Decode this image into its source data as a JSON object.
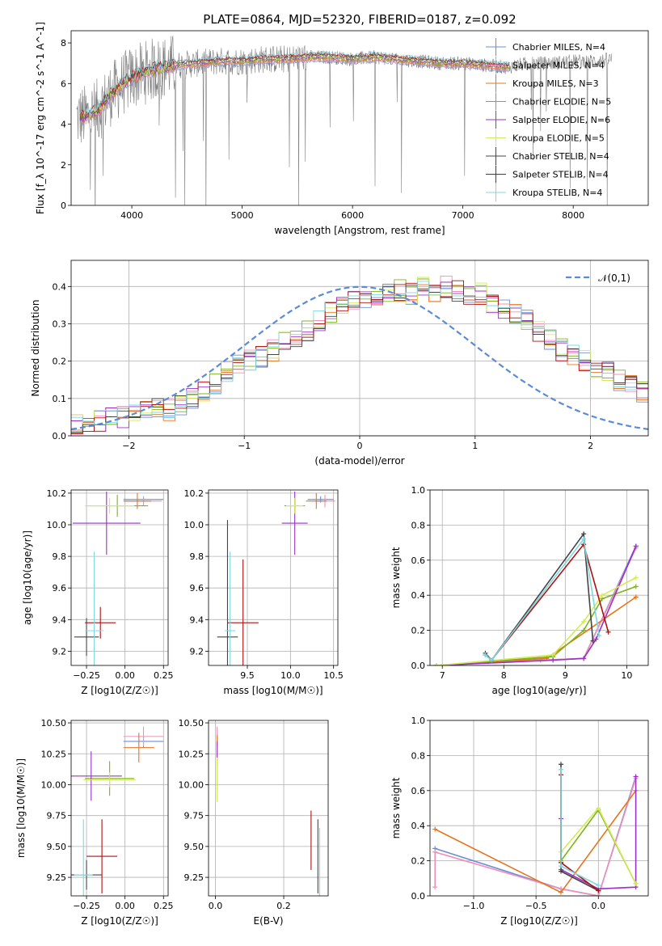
{
  "figure_title": "PLATE=0864, MJD=52320, FIBERID=0187, z=0.092",
  "colors": {
    "Chabrier MILES": "#6a8fd8",
    "Salpeter MILES": "#f08fb8",
    "Kroupa MILES": "#e8741e",
    "Chabrier ELODIE": "#7cb518",
    "Salpeter ELODIE": "#9b30c8",
    "Kroupa ELODIE": "#d4ea5a",
    "Chabrier STELIB": "#444444",
    "Salpeter STELIB": "#b01010",
    "Kroupa STELIB": "#7fd8e0",
    "gauss": "#5b8bd6"
  },
  "chart_data": [
    {
      "type": "line",
      "title": "PLATE=0864, MJD=52320, FIBERID=0187, z=0.092",
      "xlabel": "wavelength [Angstrom, rest frame]",
      "ylabel": "Flux [f_λ 10^-17 erg cm^-2 s^-1 A^-1]",
      "xlim": [
        3450,
        8680
      ],
      "ylim": [
        0,
        8.6
      ],
      "xticks": [
        4000,
        5000,
        6000,
        7000,
        8000
      ],
      "yticks": [
        0,
        2,
        4,
        6,
        8
      ],
      "legend_position": "right",
      "legend": [
        {
          "label": "Chabrier MILES, N_SSP=4",
          "series": "Chabrier MILES"
        },
        {
          "label": "Salpeter MILES, N_SSP=4",
          "series": "Salpeter MILES"
        },
        {
          "label": "Kroupa MILES, N_SSP=3",
          "series": "Kroupa MILES"
        },
        {
          "label": "Chabrier ELODIE, N_SSP=5",
          "series": "Chabrier ELODIE"
        },
        {
          "label": "Salpeter ELODIE, N_SSP=6",
          "series": "Salpeter ELODIE"
        },
        {
          "label": "Kroupa ELODIE, N_SSP=5",
          "series": "Kroupa ELODIE"
        },
        {
          "label": "Chabrier STELIB, N_SSP=4",
          "series": "Chabrier STELIB"
        },
        {
          "label": "Salpeter STELIB, N_SSP=4",
          "series": "Salpeter STELIB"
        },
        {
          "label": "Kroupa STELIB, N_SSP=4",
          "series": "Kroupa STELIB"
        }
      ],
      "data_envelope": {
        "x": [
          3500,
          3600,
          3700,
          3800,
          3900,
          4000,
          4200,
          4400,
          4600,
          4800,
          5000,
          5200,
          5400,
          5600,
          5800,
          6000,
          6200,
          6400,
          6600,
          6800,
          7000,
          7200,
          7400,
          7600,
          7800,
          8000,
          8200,
          8350
        ],
        "y": [
          4.3,
          4.4,
          4.7,
          5.4,
          5.9,
          6.3,
          6.7,
          6.9,
          7.0,
          7.1,
          7.1,
          7.2,
          7.2,
          7.3,
          7.3,
          7.2,
          7.3,
          7.2,
          7.1,
          7.0,
          7.0,
          6.9,
          6.8,
          7.0,
          7.0,
          7.1,
          7.1,
          7.2
        ]
      },
      "data_color": "#808080"
    },
    {
      "type": "bar",
      "xlabel": "(data-model)/error",
      "ylabel": "Normed distribution",
      "xlim": [
        -2.5,
        2.5
      ],
      "ylim": [
        0,
        0.47
      ],
      "xticks": [
        -2,
        -1,
        0,
        1,
        2
      ],
      "yticks": [
        0.0,
        0.1,
        0.2,
        0.3,
        0.4
      ],
      "grid": true,
      "legend": [
        {
          "label": "𝒩(0,1)",
          "series": "gauss"
        }
      ],
      "legend_position": "top-right",
      "bin_edges_start": -2.5,
      "bin_width": 0.1,
      "base_histogram": [
        0.03,
        0.03,
        0.04,
        0.05,
        0.05,
        0.06,
        0.07,
        0.08,
        0.07,
        0.08,
        0.1,
        0.12,
        0.14,
        0.17,
        0.19,
        0.2,
        0.21,
        0.23,
        0.25,
        0.26,
        0.28,
        0.31,
        0.33,
        0.35,
        0.36,
        0.37,
        0.37,
        0.38,
        0.39,
        0.38,
        0.4,
        0.38,
        0.4,
        0.39,
        0.37,
        0.38,
        0.35,
        0.34,
        0.33,
        0.31,
        0.28,
        0.26,
        0.23,
        0.22,
        0.2,
        0.18,
        0.17,
        0.15,
        0.14,
        0.12
      ],
      "series_spread": 0.03,
      "gaussian": {
        "mean": 0,
        "sigma": 1,
        "style": "dashed"
      }
    },
    {
      "type": "scatter",
      "panel": "age-vs-Z",
      "xlabel": "Z [log10(Z/Z☉)]",
      "ylabel": "age [log10(age/yr)]",
      "xlim": [
        -0.35,
        0.28
      ],
      "ylim": [
        9.11,
        10.22
      ],
      "xticks": [
        -0.25,
        0.0,
        0.25
      ],
      "yticks": [
        9.2,
        9.4,
        9.6,
        9.8,
        10.0,
        10.2
      ],
      "grid": true,
      "points": [
        {
          "series": "Chabrier MILES",
          "x": 0.12,
          "y": 10.16,
          "xerr": 0.13,
          "yerr": 0.02
        },
        {
          "series": "Salpeter MILES",
          "x": 0.12,
          "y": 10.15,
          "xerr": 0.12,
          "yerr": 0.03
        },
        {
          "series": "Kroupa MILES",
          "x": 0.08,
          "y": 10.15,
          "xerr": 0.09,
          "yerr": 0.05
        },
        {
          "series": "Chabrier ELODIE",
          "x": -0.05,
          "y": 10.12,
          "xerr": 0.2,
          "yerr": 0.07
        },
        {
          "series": "Salpeter ELODIE",
          "x": -0.12,
          "y": 10.01,
          "xerr": 0.22,
          "yerr": 0.2
        },
        {
          "series": "Kroupa ELODIE",
          "x": -0.1,
          "y": 10.12,
          "xerr": 0.16,
          "yerr": 0.05
        },
        {
          "series": "Chabrier STELIB",
          "x": -0.25,
          "y": 9.29,
          "xerr": 0.08,
          "yerr": 0.12
        },
        {
          "series": "Salpeter STELIB",
          "x": -0.16,
          "y": 9.38,
          "xerr": 0.1,
          "yerr": 0.1
        },
        {
          "series": "Kroupa STELIB",
          "x": -0.2,
          "y": 9.33,
          "xerr": 0.06,
          "yerr": 0.5
        }
      ]
    },
    {
      "type": "scatter",
      "panel": "age-vs-mass",
      "xlabel": "mass [log10(M/M☉)]",
      "ylabel": "",
      "xlim": [
        9.05,
        10.55
      ],
      "ylim": [
        9.11,
        10.22
      ],
      "xticks": [
        9.5,
        10.0,
        10.5
      ],
      "yticks": [
        9.2,
        9.4,
        9.6,
        9.8,
        10.0,
        10.2
      ],
      "grid": true,
      "points": [
        {
          "series": "Chabrier MILES",
          "x": 10.35,
          "y": 10.16,
          "xerr": 0.15,
          "yerr": 0.02
        },
        {
          "series": "Salpeter MILES",
          "x": 10.4,
          "y": 10.15,
          "xerr": 0.12,
          "yerr": 0.04
        },
        {
          "series": "Kroupa MILES",
          "x": 10.3,
          "y": 10.15,
          "xerr": 0.12,
          "yerr": 0.05
        },
        {
          "series": "Chabrier ELODIE",
          "x": 10.05,
          "y": 10.12,
          "xerr": 0.12,
          "yerr": 0.05
        },
        {
          "series": "Salpeter ELODIE",
          "x": 10.05,
          "y": 10.01,
          "xerr": 0.15,
          "yerr": 0.2
        },
        {
          "series": "Kroupa ELODIE",
          "x": 10.05,
          "y": 10.12,
          "xerr": 0.1,
          "yerr": 0.05
        },
        {
          "series": "Chabrier STELIB",
          "x": 9.27,
          "y": 9.29,
          "xerr": 0.12,
          "yerr": 0.74
        },
        {
          "series": "Salpeter STELIB",
          "x": 9.45,
          "y": 9.38,
          "xerr": 0.18,
          "yerr": 0.4
        },
        {
          "series": "Kroupa STELIB",
          "x": 9.3,
          "y": 9.33,
          "xerr": 0.06,
          "yerr": 0.5
        }
      ]
    },
    {
      "type": "line",
      "panel": "weight-vs-age",
      "xlabel": "age [log10(age/yr)]",
      "ylabel": "mass weight",
      "xlim": [
        6.8,
        10.35
      ],
      "ylim": [
        0,
        1.0
      ],
      "xticks": [
        7,
        8,
        9,
        10
      ],
      "yticks": [
        0.0,
        0.2,
        0.4,
        0.6,
        0.8,
        1.0
      ],
      "grid": true,
      "series": [
        {
          "name": "Chabrier MILES",
          "x": [
            6.9,
            8.6,
            9.3,
            10.15
          ],
          "y": [
            0.0,
            0.03,
            0.04,
            0.68
          ]
        },
        {
          "name": "Salpeter MILES",
          "x": [
            6.9,
            8.6,
            9.3,
            10.15
          ],
          "y": [
            0.0,
            0.03,
            0.04,
            0.67
          ]
        },
        {
          "name": "Kroupa MILES",
          "x": [
            6.9,
            8.7,
            10.15
          ],
          "y": [
            0.0,
            0.04,
            0.39
          ]
        },
        {
          "name": "Chabrier ELODIE",
          "x": [
            6.9,
            8.8,
            9.3,
            9.6,
            10.15
          ],
          "y": [
            0.0,
            0.05,
            0.2,
            0.38,
            0.45
          ]
        },
        {
          "name": "Salpeter ELODIE",
          "x": [
            6.9,
            8.8,
            9.3,
            9.5,
            10.15
          ],
          "y": [
            0.0,
            0.03,
            0.04,
            0.15,
            0.68
          ]
        },
        {
          "name": "Kroupa ELODIE",
          "x": [
            6.9,
            8.8,
            9.3,
            9.6,
            10.15
          ],
          "y": [
            0.0,
            0.06,
            0.25,
            0.4,
            0.5
          ]
        },
        {
          "name": "Chabrier STELIB",
          "x": [
            7.7,
            7.8,
            9.3,
            9.45
          ],
          "y": [
            0.07,
            0.03,
            0.75,
            0.14
          ]
        },
        {
          "name": "Salpeter STELIB",
          "x": [
            7.7,
            7.8,
            9.3,
            9.7
          ],
          "y": [
            0.06,
            0.03,
            0.69,
            0.19
          ]
        },
        {
          "name": "Kroupa STELIB",
          "x": [
            7.7,
            7.8,
            9.3,
            9.55
          ],
          "y": [
            0.06,
            0.03,
            0.72,
            0.17
          ]
        }
      ]
    },
    {
      "type": "scatter",
      "panel": "mass-vs-Z",
      "xlabel": "Z [log10(Z/Z☉)]",
      "ylabel": "mass [log10(M/M☉)]",
      "xlim": [
        -0.35,
        0.28
      ],
      "ylim": [
        9.1,
        10.52
      ],
      "xticks": [
        -0.25,
        0.0,
        0.25
      ],
      "yticks": [
        9.25,
        9.5,
        9.75,
        10.0,
        10.25,
        10.5
      ],
      "grid": true,
      "points": [
        {
          "series": "Chabrier MILES",
          "x": 0.12,
          "y": 10.35,
          "xerr": 0.13,
          "yerr": 0.05
        },
        {
          "series": "Salpeter MILES",
          "x": 0.12,
          "y": 10.39,
          "xerr": 0.13,
          "yerr": 0.08
        },
        {
          "series": "Kroupa MILES",
          "x": 0.09,
          "y": 10.3,
          "xerr": 0.1,
          "yerr": 0.12
        },
        {
          "series": "Chabrier ELODIE",
          "x": -0.1,
          "y": 10.05,
          "xerr": 0.16,
          "yerr": 0.14
        },
        {
          "series": "Salpeter ELODIE",
          "x": -0.22,
          "y": 10.07,
          "xerr": 0.2,
          "yerr": 0.2
        },
        {
          "series": "Kroupa ELODIE",
          "x": -0.1,
          "y": 10.04,
          "xerr": 0.17,
          "yerr": 0.06
        },
        {
          "series": "Chabrier STELIB",
          "x": -0.25,
          "y": 9.27,
          "xerr": 0.1,
          "yerr": 0.12
        },
        {
          "series": "Salpeter STELIB",
          "x": -0.15,
          "y": 9.42,
          "xerr": 0.1,
          "yerr": 0.3
        },
        {
          "series": "Kroupa STELIB",
          "x": -0.27,
          "y": 9.27,
          "xerr": 0.06,
          "yerr": 0.45
        }
      ]
    },
    {
      "type": "scatter",
      "panel": "mass-vs-EBV",
      "xlabel": "E(B-V)",
      "ylabel": "",
      "xlim": [
        -0.02,
        0.33
      ],
      "ylim": [
        9.1,
        10.52
      ],
      "xticks": [
        0.0,
        0.2
      ],
      "yticks": [
        9.25,
        9.5,
        9.75,
        10.0,
        10.25,
        10.5
      ],
      "grid": true,
      "points": [
        {
          "series": "Chabrier MILES",
          "x": 0.005,
          "y": 10.35,
          "xerr": 0,
          "yerr": 0.05
        },
        {
          "series": "Salpeter MILES",
          "x": 0.005,
          "y": 10.39,
          "xerr": 0,
          "yerr": 0.08
        },
        {
          "series": "Kroupa MILES",
          "x": 0.005,
          "y": 10.3,
          "xerr": 0,
          "yerr": 0.1
        },
        {
          "series": "Chabrier ELODIE",
          "x": 0.005,
          "y": 10.05,
          "xerr": 0,
          "yerr": 0.1
        },
        {
          "series": "Salpeter ELODIE",
          "x": 0.005,
          "y": 10.25,
          "xerr": 0,
          "yerr": 0.1
        },
        {
          "series": "Kroupa ELODIE",
          "x": 0.005,
          "y": 10.04,
          "xerr": 0,
          "yerr": 0.18
        },
        {
          "series": "Chabrier STELIB",
          "x": 0.3,
          "y": 9.42,
          "xerr": 0,
          "yerr": 0.3
        },
        {
          "series": "Salpeter STELIB",
          "x": 0.28,
          "y": 9.55,
          "xerr": 0,
          "yerr": 0.24
        },
        {
          "series": "Kroupa STELIB",
          "x": 0.305,
          "y": 9.35,
          "xerr": 0,
          "yerr": 0.3
        }
      ]
    },
    {
      "type": "line",
      "panel": "weight-vs-Z",
      "xlabel": "Z [log10(Z/Z☉)]",
      "ylabel": "mass weight",
      "xlim": [
        -1.35,
        0.4
      ],
      "ylim": [
        0,
        1.0
      ],
      "xticks": [
        -1.0,
        -0.5,
        0.0
      ],
      "yticks": [
        0.0,
        0.2,
        0.4,
        0.6,
        0.8,
        1.0
      ],
      "grid": true,
      "series": [
        {
          "name": "Chabrier MILES",
          "x": [
            -1.31,
            -0.3,
            0.0,
            0.3
          ],
          "y": [
            0.27,
            0.04,
            0.0,
            0.68
          ]
        },
        {
          "name": "Salpeter MILES",
          "x": [
            -1.31,
            -1.31,
            -0.3,
            0.0,
            0.3
          ],
          "y": [
            0.05,
            0.25,
            0.04,
            0.0,
            0.67
          ]
        },
        {
          "name": "Kroupa MILES",
          "x": [
            -1.31,
            -0.3,
            0.3
          ],
          "y": [
            0.38,
            0.02,
            0.6
          ]
        },
        {
          "name": "Chabrier ELODIE",
          "x": [
            -0.3,
            0.0,
            0.3
          ],
          "y": [
            0.2,
            0.49,
            0.07
          ]
        },
        {
          "name": "Salpeter ELODIE",
          "x": [
            -0.3,
            -0.3,
            0.0,
            0.3,
            0.3
          ],
          "y": [
            0.44,
            0.15,
            0.04,
            0.05,
            0.68
          ]
        },
        {
          "name": "Kroupa ELODIE",
          "x": [
            -0.3,
            0.0,
            0.3
          ],
          "y": [
            0.25,
            0.5,
            0.07
          ]
        },
        {
          "name": "Chabrier STELIB",
          "x": [
            -0.3,
            -0.3,
            0.0
          ],
          "y": [
            0.75,
            0.14,
            0.03
          ]
        },
        {
          "name": "Salpeter STELIB",
          "x": [
            -0.3,
            -0.3,
            0.0
          ],
          "y": [
            0.69,
            0.19,
            0.03
          ]
        },
        {
          "name": "Kroupa STELIB",
          "x": [
            -0.3,
            -0.3,
            0.0
          ],
          "y": [
            0.72,
            0.17,
            0.06
          ]
        }
      ]
    }
  ]
}
